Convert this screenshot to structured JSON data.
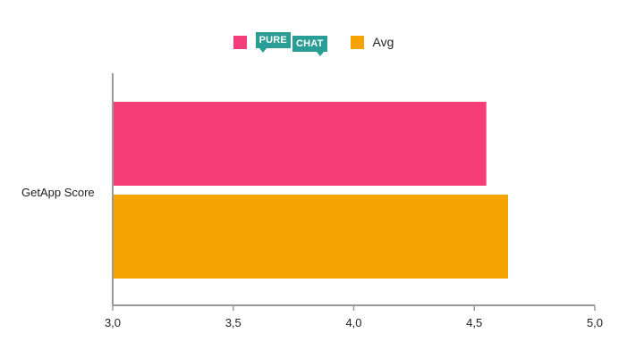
{
  "legend": [
    {
      "name": "Pure Chat",
      "logo_text": [
        "PURE",
        "CHAT"
      ],
      "color": "#f53d7a"
    },
    {
      "name": "Avg",
      "color": "#f5a300"
    }
  ],
  "chart_data": {
    "type": "bar",
    "orientation": "horizontal",
    "categories": [
      "GetApp Score"
    ],
    "series": [
      {
        "name": "Pure Chat",
        "values": [
          4.55
        ],
        "color": "#f53d7a"
      },
      {
        "name": "Avg",
        "values": [
          4.64
        ],
        "color": "#f5a300"
      }
    ],
    "xlim": [
      3.0,
      5.0
    ],
    "xticks": [
      "3,0",
      "3,5",
      "4,0",
      "4,5",
      "5,0"
    ],
    "xtick_values": [
      3.0,
      3.5,
      4.0,
      4.5,
      5.0
    ],
    "legend_position": "top-center",
    "grid": false
  }
}
